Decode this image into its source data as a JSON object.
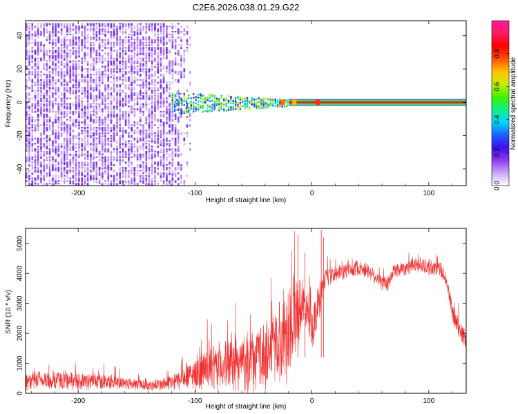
{
  "title": "C2E6.2026.038.01.29.G22",
  "chart_data": [
    {
      "type": "heatmap",
      "title": "C2E6.2026.038.01.29.G22",
      "xlabel": "Height of straight line (km)",
      "ylabel": "Frequency (Hz)",
      "xlim": [
        -245,
        132
      ],
      "ylim": [
        -50,
        49
      ],
      "xticks": [
        -200,
        -100,
        0,
        100
      ],
      "xtick_labels": [
        "-200",
        "-100",
        "0",
        "100"
      ],
      "yticks": [
        -40,
        -20,
        0,
        20,
        40
      ],
      "ytick_labels": [
        "-40",
        "-20",
        "0",
        "20",
        "40"
      ],
      "colorbar": {
        "label": "Normalized spectral amplitude",
        "range": [
          0,
          1
        ],
        "ticks": [
          0.0,
          0.2,
          0.4,
          0.6,
          0.8
        ],
        "tick_labels": [
          "0.0",
          "0.2",
          "0.4",
          "0.6",
          "0.8"
        ],
        "colors": [
          "#ffffff",
          "#c8a8f8",
          "#8a3cf0",
          "#3c10e8",
          "#2060ff",
          "#00d8ff",
          "#10f080",
          "#40f000",
          "#c8f000",
          "#ffc000",
          "#ff5000",
          "#ff0000",
          "#ff1a60",
          "#ff1aa0"
        ]
      },
      "regions": [
        {
          "description": "broad weak noise",
          "x_range": [
            -245,
            -110
          ],
          "freq_range": [
            -50,
            49
          ],
          "amplitude": 0.15
        },
        {
          "description": "converging signal band",
          "x_range": [
            -120,
            -20
          ],
          "freq_range": [
            -6,
            6
          ],
          "amplitude": 0.4
        },
        {
          "description": "strong carrier line",
          "x_range": [
            -20,
            132
          ],
          "freq_center": 0,
          "freq_halfwidth": 2,
          "amplitude": 0.9
        }
      ]
    },
    {
      "type": "line",
      "xlabel": "Height of straight line (km)",
      "ylabel": "SNR (10 * v/v)",
      "xlim": [
        -245,
        132
      ],
      "ylim": [
        0,
        5500
      ],
      "xticks": [
        -200,
        -100,
        0,
        100
      ],
      "xtick_labels": [
        "-200",
        "-100",
        "0",
        "100"
      ],
      "yticks": [
        0,
        1000,
        2000,
        3000,
        4000,
        5000
      ],
      "ytick_labels": [
        "0",
        "1000",
        "2000",
        "3000",
        "4000",
        "5000"
      ],
      "series": [
        {
          "name": "SNR",
          "color": "#f03030",
          "x": [
            -245,
            -230,
            -210,
            -190,
            -170,
            -150,
            -140,
            -130,
            -120,
            -110,
            -100,
            -90,
            -80,
            -70,
            -60,
            -50,
            -40,
            -30,
            -25,
            -20,
            -15,
            -10,
            -5,
            0,
            5,
            10,
            15,
            20,
            30,
            40,
            50,
            60,
            65,
            70,
            80,
            90,
            100,
            110,
            115,
            120,
            125,
            132
          ],
          "values": [
            400,
            430,
            420,
            400,
            380,
            300,
            270,
            280,
            350,
            470,
            640,
            780,
            870,
            950,
            1000,
            1080,
            1300,
            1700,
            1900,
            2100,
            2700,
            2900,
            3000,
            2200,
            2800,
            3700,
            3900,
            3950,
            4100,
            4200,
            4050,
            3700,
            3600,
            4100,
            4200,
            4300,
            4200,
            4150,
            3800,
            2700,
            2200,
            1800
          ],
          "spread": [
            350,
            350,
            330,
            310,
            280,
            230,
            220,
            240,
            320,
            420,
            600,
            800,
            900,
            950,
            1050,
            1150,
            1300,
            1500,
            1700,
            1900,
            1700,
            1200,
            800,
            800,
            900,
            400,
            350,
            300,
            300,
            300,
            300,
            300,
            300,
            300,
            300,
            300,
            300,
            300,
            300,
            400,
            400,
            400
          ]
        }
      ]
    }
  ]
}
